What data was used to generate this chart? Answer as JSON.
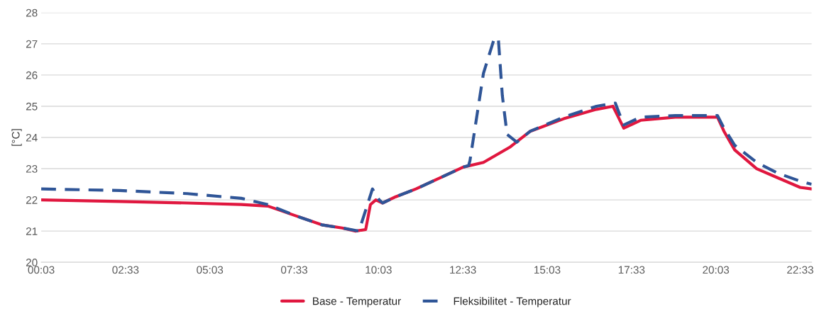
{
  "chart_data": {
    "type": "line",
    "ylabel": "[°C]",
    "xlim": [
      0.05,
      22.89
    ],
    "ylim": [
      20,
      28
    ],
    "xticks": [
      {
        "value": 0.05,
        "label": "00:03"
      },
      {
        "value": 2.55,
        "label": "02:33"
      },
      {
        "value": 5.05,
        "label": "05:03"
      },
      {
        "value": 7.55,
        "label": "07:33"
      },
      {
        "value": 10.05,
        "label": "10:03"
      },
      {
        "value": 12.55,
        "label": "12:33"
      },
      {
        "value": 15.05,
        "label": "15:03"
      },
      {
        "value": 17.55,
        "label": "17:33"
      },
      {
        "value": 20.05,
        "label": "20:03"
      },
      {
        "value": 22.55,
        "label": "22:33"
      }
    ],
    "yticks": [
      20,
      21,
      22,
      23,
      24,
      25,
      26,
      27,
      28
    ],
    "grid": "y",
    "legend": "bottom",
    "marker": "none",
    "series": [
      {
        "name": "Base - Temperatur",
        "color": "#e0173f",
        "line_style": "solid",
        "x": [
          0.05,
          2.38,
          4.38,
          5.98,
          6.77,
          7.57,
          8.37,
          8.97,
          9.37,
          9.67,
          9.81,
          9.97,
          10.17,
          10.56,
          11.16,
          11.96,
          12.56,
          13.16,
          13.96,
          14.55,
          15.54,
          16.51,
          17.0,
          17.16,
          17.32,
          17.82,
          18.85,
          20.1,
          20.29,
          20.61,
          21.26,
          21.9,
          22.55,
          22.89
        ],
        "values": [
          22.0,
          21.95,
          21.9,
          21.85,
          21.8,
          21.5,
          21.2,
          21.1,
          21.0,
          21.05,
          21.85,
          22.0,
          21.9,
          22.1,
          22.35,
          22.75,
          23.05,
          23.2,
          23.7,
          24.2,
          24.6,
          24.9,
          25.0,
          24.65,
          24.3,
          24.55,
          24.65,
          24.65,
          24.2,
          23.6,
          23.0,
          22.7,
          22.4,
          22.35
        ]
      },
      {
        "name": "Fleksibilitet - Temperatur",
        "color": "#2f5597",
        "line_style": "dashed",
        "x": [
          0.05,
          2.38,
          4.38,
          5.98,
          6.77,
          7.57,
          8.37,
          8.97,
          9.47,
          9.87,
          10.07,
          10.17,
          10.56,
          11.16,
          11.96,
          12.56,
          12.72,
          12.76,
          13.16,
          13.46,
          13.6,
          13.72,
          13.86,
          14.15,
          14.55,
          15.54,
          16.51,
          17.07,
          17.32,
          17.82,
          18.85,
          20.1,
          20.29,
          20.61,
          21.26,
          21.9,
          22.55,
          22.89
        ],
        "values": [
          22.35,
          22.3,
          22.2,
          22.05,
          21.85,
          21.5,
          21.2,
          21.1,
          21.0,
          22.35,
          22.0,
          21.9,
          22.1,
          22.35,
          22.75,
          23.05,
          23.1,
          23.25,
          26.05,
          27.1,
          27.2,
          25.35,
          24.1,
          23.85,
          24.2,
          24.65,
          25.0,
          25.1,
          24.4,
          24.65,
          24.7,
          24.7,
          24.3,
          23.75,
          23.2,
          22.85,
          22.6,
          22.5
        ]
      }
    ]
  }
}
